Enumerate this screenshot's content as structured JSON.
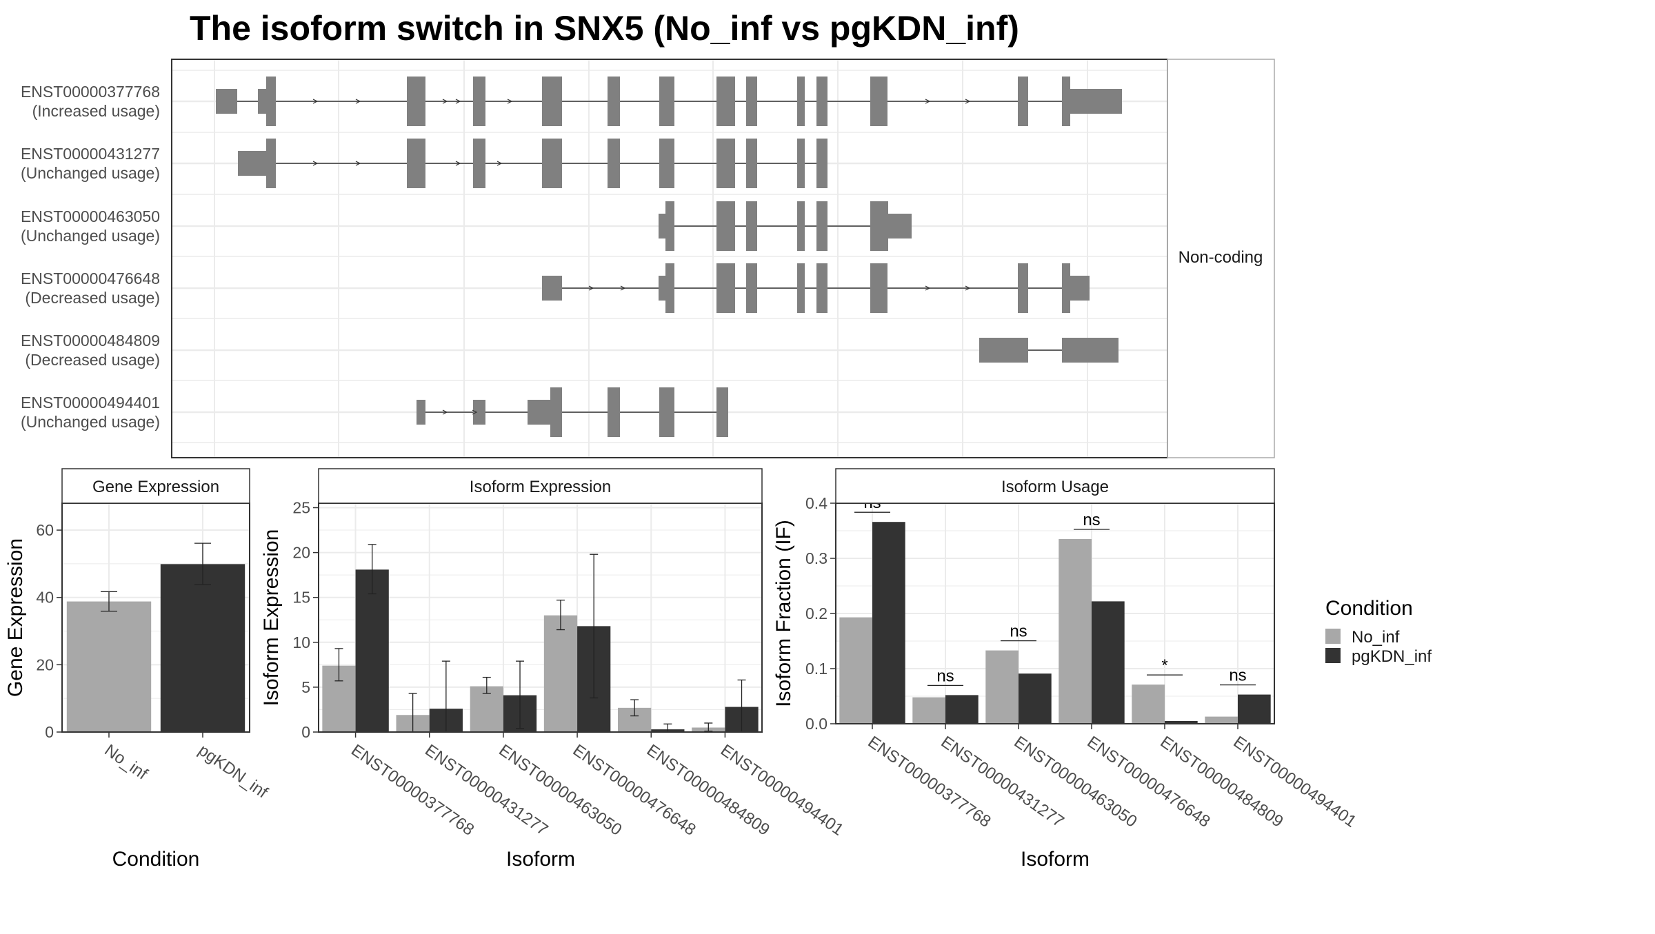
{
  "title": "The isoform switch in SNX5 (No_inf vs pgKDN_inf)",
  "colors": {
    "No_inf": "#a8a8a8",
    "pgKDN_inf": "#333333",
    "exon": "#808080",
    "grid": "#ebebeb",
    "border": "#333333"
  },
  "legend": {
    "title": "Condition",
    "items": [
      {
        "label": "No_inf",
        "color": "#a8a8a8"
      },
      {
        "label": "pgKDN_inf",
        "color": "#333333"
      }
    ]
  },
  "structure": {
    "strip_label": "Non-coding",
    "transcripts": [
      {
        "id": "ENST00000377768",
        "usage": "(Increased usage)"
      },
      {
        "id": "ENST00000431277",
        "usage": "(Unchanged usage)"
      },
      {
        "id": "ENST00000463050",
        "usage": "(Unchanged usage)"
      },
      {
        "id": "ENST00000476648",
        "usage": "(Decreased usage)"
      },
      {
        "id": "ENST00000484809",
        "usage": "(Decreased usage)"
      },
      {
        "id": "ENST00000494401",
        "usage": "(Unchanged usage)"
      }
    ]
  },
  "chart_data": [
    {
      "type": "bar",
      "title": "Gene Expression",
      "xlabel": "Condition",
      "ylabel": "Gene Expression",
      "ylim": [
        0,
        68
      ],
      "yticks": [
        0,
        20,
        40,
        60
      ],
      "categories": [
        "No_inf",
        "pgKDN_inf"
      ],
      "values": [
        38.8,
        49.9
      ],
      "error": [
        [
          35.9,
          41.7
        ],
        [
          43.8,
          56.1
        ]
      ]
    },
    {
      "type": "bar",
      "title": "Isoform Expression",
      "xlabel": "Isoform",
      "ylabel": "Isoform Expression",
      "ylim": [
        0,
        25.5
      ],
      "yticks": [
        0,
        5,
        10,
        15,
        20,
        25
      ],
      "categories": [
        "ENST00000377768",
        "ENST00000431277",
        "ENST00000463050",
        "ENST00000476648",
        "ENST00000484809",
        "ENST00000494401"
      ],
      "series": [
        {
          "name": "No_inf",
          "values": [
            7.4,
            1.9,
            5.1,
            13.0,
            2.7,
            0.5
          ],
          "error": [
            [
              5.7,
              9.3
            ],
            [
              0.0,
              4.3
            ],
            [
              4.3,
              6.1
            ],
            [
              11.4,
              14.7
            ],
            [
              1.8,
              3.6
            ],
            [
              0.1,
              1.0
            ]
          ]
        },
        {
          "name": "pgKDN_inf",
          "values": [
            18.1,
            2.6,
            4.1,
            11.8,
            0.3,
            2.8
          ],
          "error": [
            [
              15.4,
              20.9
            ],
            [
              0.0,
              7.9
            ],
            [
              0.4,
              7.9
            ],
            [
              3.8,
              19.8
            ],
            [
              0.0,
              0.9
            ],
            [
              0.0,
              5.8
            ]
          ]
        }
      ]
    },
    {
      "type": "bar",
      "title": "Isoform Usage",
      "xlabel": "Isoform",
      "ylabel": "Isoform Fraction (IF)",
      "ylim": [
        0,
        0.4
      ],
      "yticks": [
        0.0,
        0.1,
        0.2,
        0.3,
        0.4
      ],
      "categories": [
        "ENST00000377768",
        "ENST00000431277",
        "ENST00000463050",
        "ENST00000476648",
        "ENST00000484809",
        "ENST00000494401"
      ],
      "series": [
        {
          "name": "No_inf",
          "values": [
            0.193,
            0.048,
            0.133,
            0.335,
            0.071,
            0.013
          ]
        },
        {
          "name": "pgKDN_inf",
          "values": [
            0.366,
            0.052,
            0.091,
            0.222,
            0.005,
            0.053
          ]
        }
      ],
      "significance": [
        "ns",
        "ns",
        "ns",
        "ns",
        "*",
        "ns"
      ]
    }
  ]
}
